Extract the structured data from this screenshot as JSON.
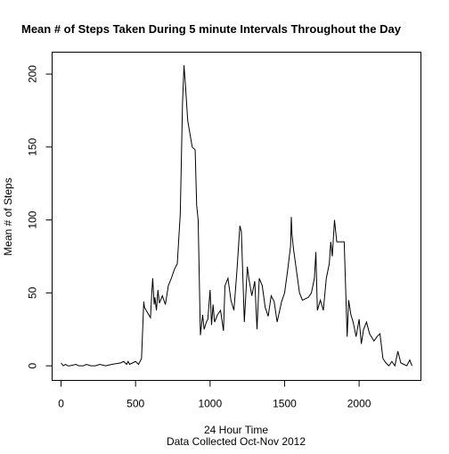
{
  "chart_data": {
    "type": "line",
    "title": "Mean # of Steps Taken During 5 minute Intervals Throughout the Day",
    "xlabel": "24 Hour Time",
    "xlabel_sub": "Data Collected Oct-Nov 2012",
    "ylabel": "Mean # of Steps",
    "xlim": [
      -60,
      2415
    ],
    "ylim": [
      -10,
      215
    ],
    "xticks": [
      0,
      500,
      1000,
      1500,
      2000
    ],
    "xtick_labels": [
      "0",
      "500",
      "1000",
      "1500",
      "2000"
    ],
    "yticks": [
      0,
      50,
      100,
      150,
      200
    ],
    "ytick_labels": [
      "0",
      "50",
      "100",
      "150",
      "200"
    ],
    "grid": false,
    "legend": "none",
    "line_color": "#000000",
    "x": [
      0,
      15,
      30,
      45,
      60,
      100,
      120,
      150,
      170,
      200,
      230,
      260,
      300,
      340,
      400,
      420,
      440,
      450,
      460,
      480,
      500,
      520,
      540,
      555,
      560,
      600,
      610,
      615,
      625,
      630,
      640,
      650,
      660,
      680,
      700,
      720,
      740,
      760,
      780,
      800,
      815,
      825,
      835,
      850,
      880,
      900,
      910,
      920,
      935,
      950,
      960,
      975,
      985,
      1000,
      1010,
      1020,
      1030,
      1050,
      1070,
      1090,
      1100,
      1120,
      1140,
      1160,
      1180,
      1200,
      1210,
      1230,
      1250,
      1260,
      1280,
      1300,
      1315,
      1330,
      1350,
      1370,
      1390,
      1410,
      1430,
      1450,
      1480,
      1500,
      1520,
      1540,
      1545,
      1550,
      1560,
      1580,
      1600,
      1620,
      1640,
      1660,
      1680,
      1700,
      1710,
      1720,
      1740,
      1760,
      1780,
      1800,
      1810,
      1820,
      1835,
      1850,
      1900,
      1920,
      1930,
      1945,
      1960,
      1980,
      2000,
      2015,
      2030,
      2050,
      2070,
      2100,
      2120,
      2140,
      2160,
      2180,
      2200,
      2220,
      2240,
      2250,
      2260,
      2280,
      2300,
      2320,
      2340,
      2355
    ],
    "y": [
      2,
      0,
      1,
      0,
      0,
      1,
      0,
      0,
      1,
      0,
      0,
      1,
      0,
      1,
      2,
      3,
      1,
      3,
      1,
      2,
      3,
      1,
      5,
      44,
      40,
      33,
      52,
      60,
      42,
      47,
      38,
      52,
      43,
      48,
      42,
      55,
      60,
      66,
      70,
      104,
      180,
      206,
      192,
      168,
      150,
      148,
      110,
      100,
      21,
      35,
      25,
      30,
      32,
      52,
      28,
      42,
      30,
      35,
      38,
      24,
      55,
      60,
      45,
      38,
      65,
      96,
      92,
      30,
      68,
      60,
      48,
      58,
      25,
      60,
      55,
      40,
      34,
      48,
      44,
      30,
      44,
      50,
      65,
      82,
      102,
      90,
      80,
      65,
      50,
      45,
      46,
      47,
      50,
      60,
      78,
      38,
      45,
      38,
      60,
      70,
      85,
      75,
      100,
      85,
      85,
      20,
      45,
      35,
      30,
      20,
      32,
      15,
      25,
      30,
      22,
      17,
      20,
      22,
      5,
      2,
      0,
      3,
      0,
      5,
      10,
      2,
      1,
      0,
      4,
      0
    ]
  }
}
